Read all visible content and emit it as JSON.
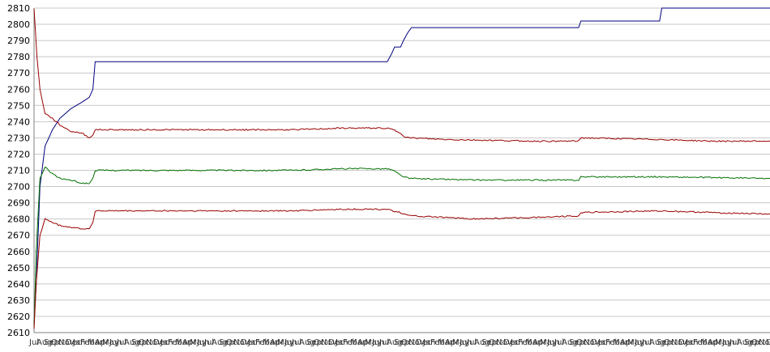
{
  "chart_data": {
    "type": "line",
    "title": "",
    "xlabel": "",
    "ylabel": "",
    "ylim": [
      2610,
      2810
    ],
    "yticks": [
      2610,
      2620,
      2630,
      2640,
      2650,
      2660,
      2670,
      2680,
      2690,
      2700,
      2710,
      2720,
      2730,
      2740,
      2750,
      2760,
      2770,
      2780,
      2790,
      2800,
      2810
    ],
    "grid": true,
    "legend": "none",
    "x_tick_labels": [
      "Jul",
      "Aug",
      "Sep",
      "Oct",
      "Nov",
      "Dec",
      "Jan",
      "Feb",
      "Mar",
      "Apr",
      "May",
      "Jun"
    ],
    "x_range": [
      0,
      100
    ],
    "series": [
      {
        "color": "#000080",
        "points": [
          [
            0,
            2615
          ],
          [
            0.3,
            2640
          ],
          [
            0.8,
            2700
          ],
          [
            1.5,
            2725
          ],
          [
            2.5,
            2735
          ],
          [
            3.5,
            2742
          ],
          [
            5.0,
            2748
          ],
          [
            6.5,
            2752
          ],
          [
            7.5,
            2755
          ],
          [
            8.0,
            2760
          ],
          [
            8.3,
            2777
          ],
          [
            20,
            2777
          ],
          [
            35,
            2777
          ],
          [
            48.0,
            2777
          ],
          [
            48.6,
            2782
          ],
          [
            49.0,
            2786
          ],
          [
            49.8,
            2786
          ],
          [
            50.2,
            2790
          ],
          [
            50.8,
            2795
          ],
          [
            51.3,
            2798
          ],
          [
            60,
            2798
          ],
          [
            74.0,
            2798
          ],
          [
            74.3,
            2802
          ],
          [
            85.0,
            2802
          ],
          [
            85.3,
            2810
          ],
          [
            100,
            2810
          ]
        ]
      },
      {
        "color": "#990000",
        "points": [
          [
            0,
            2810
          ],
          [
            0.4,
            2780
          ],
          [
            0.8,
            2760
          ],
          [
            1.5,
            2745
          ],
          [
            2.5,
            2742
          ],
          [
            3.5,
            2738
          ],
          [
            5.0,
            2734
          ],
          [
            6.5,
            2733
          ],
          [
            7.5,
            2730
          ],
          [
            8.0,
            2732
          ],
          [
            8.3,
            2735
          ],
          [
            20,
            2735
          ],
          [
            35,
            2735
          ],
          [
            42,
            2736
          ],
          [
            48.0,
            2736
          ],
          [
            48.8,
            2735
          ],
          [
            49.8,
            2733
          ],
          [
            50.3,
            2731
          ],
          [
            51.0,
            2730
          ],
          [
            56,
            2729
          ],
          [
            68,
            2728
          ],
          [
            74.0,
            2728
          ],
          [
            74.3,
            2730
          ],
          [
            85,
            2729
          ],
          [
            92,
            2728
          ],
          [
            100,
            2728
          ]
        ]
      },
      {
        "color": "#007000",
        "points": [
          [
            0,
            2612
          ],
          [
            0.3,
            2660
          ],
          [
            0.8,
            2705
          ],
          [
            1.5,
            2712
          ],
          [
            2.5,
            2708
          ],
          [
            3.5,
            2705
          ],
          [
            5.0,
            2704
          ],
          [
            6.5,
            2702
          ],
          [
            7.5,
            2702
          ],
          [
            8.0,
            2705
          ],
          [
            8.3,
            2710
          ],
          [
            20,
            2710
          ],
          [
            35,
            2710
          ],
          [
            42,
            2711
          ],
          [
            48.0,
            2711
          ],
          [
            48.8,
            2710
          ],
          [
            49.8,
            2707
          ],
          [
            50.3,
            2706
          ],
          [
            51.0,
            2705
          ],
          [
            60,
            2704
          ],
          [
            74.0,
            2704
          ],
          [
            74.3,
            2706
          ],
          [
            85,
            2706
          ],
          [
            100,
            2705
          ]
        ]
      },
      {
        "color": "#990000",
        "points": [
          [
            0,
            2612
          ],
          [
            0.3,
            2640
          ],
          [
            0.8,
            2670
          ],
          [
            1.5,
            2680
          ],
          [
            2.5,
            2678
          ],
          [
            3.5,
            2676
          ],
          [
            5.0,
            2675
          ],
          [
            6.5,
            2674
          ],
          [
            7.5,
            2674
          ],
          [
            8.0,
            2678
          ],
          [
            8.3,
            2685
          ],
          [
            20,
            2685
          ],
          [
            35,
            2685
          ],
          [
            42,
            2686
          ],
          [
            48.0,
            2686
          ],
          [
            48.8,
            2685
          ],
          [
            49.8,
            2684
          ],
          [
            50.3,
            2683
          ],
          [
            51.0,
            2682
          ],
          [
            60,
            2680
          ],
          [
            68,
            2681
          ],
          [
            74.0,
            2682
          ],
          [
            74.3,
            2684
          ],
          [
            85,
            2685
          ],
          [
            92,
            2684
          ],
          [
            100,
            2683
          ]
        ]
      }
    ]
  }
}
